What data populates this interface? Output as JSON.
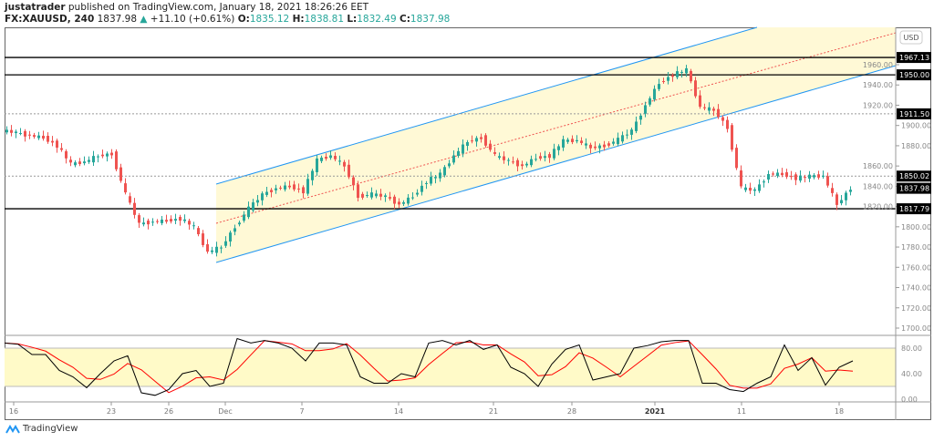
{
  "header": {
    "publisher": "justatrader",
    "published_text": "published on TradingView.com, January 18, 2021 18:26:26 EET",
    "symbol": "FX:XAUUSD, 240",
    "last": "1837.98",
    "change": "+11.10 (+0.61%)",
    "o_label": "O:",
    "o": "1835.12",
    "h_label": "H:",
    "h": "1838.81",
    "l_label": "L:",
    "l": "1832.49",
    "c_label": "C:",
    "c": "1837.98"
  },
  "currency": "USD",
  "logo": "TradingView",
  "colors": {
    "up": "#26a69a",
    "down": "#ef5350",
    "channel": "#2196f3",
    "channel_fill": "#fff9d6",
    "osc_fill": "#fffac8",
    "k": "#000000",
    "d": "#ff0000"
  },
  "chart_data": {
    "type": "candlestick",
    "price_axis": {
      "ticks": [
        "1960.00",
        "1940.00",
        "1920.00",
        "1900.00",
        "1880.00",
        "1860.00",
        "1840.00",
        "1820.00",
        "1800.00",
        "1780.00",
        "1760.00",
        "1740.00",
        "1720.00",
        "1700.00"
      ],
      "range": [
        1690,
        1990
      ]
    },
    "price_labels": [
      {
        "value": "1967.13",
        "style": "solid"
      },
      {
        "value": "1950.00",
        "style": "solid"
      },
      {
        "value": "1911.50",
        "style": "dotted"
      },
      {
        "value": "1850.02",
        "style": "dotted"
      },
      {
        "value": "1837.98",
        "style": "last"
      },
      {
        "value": "1817.79",
        "style": "solid"
      }
    ],
    "x_ticks": [
      "16",
      "23",
      "26",
      "Dec",
      "7",
      "14",
      "21",
      "28",
      "2021",
      "11",
      "18"
    ],
    "closes": [
      1895,
      1893,
      1890,
      1888,
      1880,
      1862,
      1864,
      1870,
      1872,
      1832,
      1803,
      1805,
      1806,
      1808,
      1800,
      1775,
      1780,
      1800,
      1818,
      1832,
      1838,
      1840,
      1835,
      1866,
      1870,
      1860,
      1830,
      1832,
      1830,
      1822,
      1830,
      1845,
      1852,
      1870,
      1884,
      1888,
      1870,
      1865,
      1860,
      1868,
      1870,
      1885,
      1885,
      1878,
      1880,
      1886,
      1895,
      1920,
      1942,
      1950,
      1955,
      1918,
      1915,
      1898,
      1838,
      1836,
      1852,
      1852,
      1848,
      1850,
      1850,
      1822,
      1838
    ],
    "oscillator": {
      "axis_ticks": [
        "80.00",
        "40.00",
        "0.00"
      ],
      "band": [
        20,
        80
      ],
      "k": [
        88,
        86,
        70,
        70,
        45,
        35,
        18,
        40,
        60,
        68,
        10,
        6,
        15,
        40,
        45,
        20,
        25,
        95,
        88,
        92,
        88,
        80,
        60,
        88,
        88,
        85,
        35,
        25,
        25,
        40,
        35,
        88,
        92,
        85,
        92,
        78,
        85,
        50,
        40,
        20,
        55,
        78,
        85,
        30,
        35,
        40,
        80,
        84,
        90,
        92,
        92,
        25,
        25,
        15,
        12,
        25,
        35,
        85,
        45,
        65,
        22,
        50,
        60
      ]
    }
  }
}
